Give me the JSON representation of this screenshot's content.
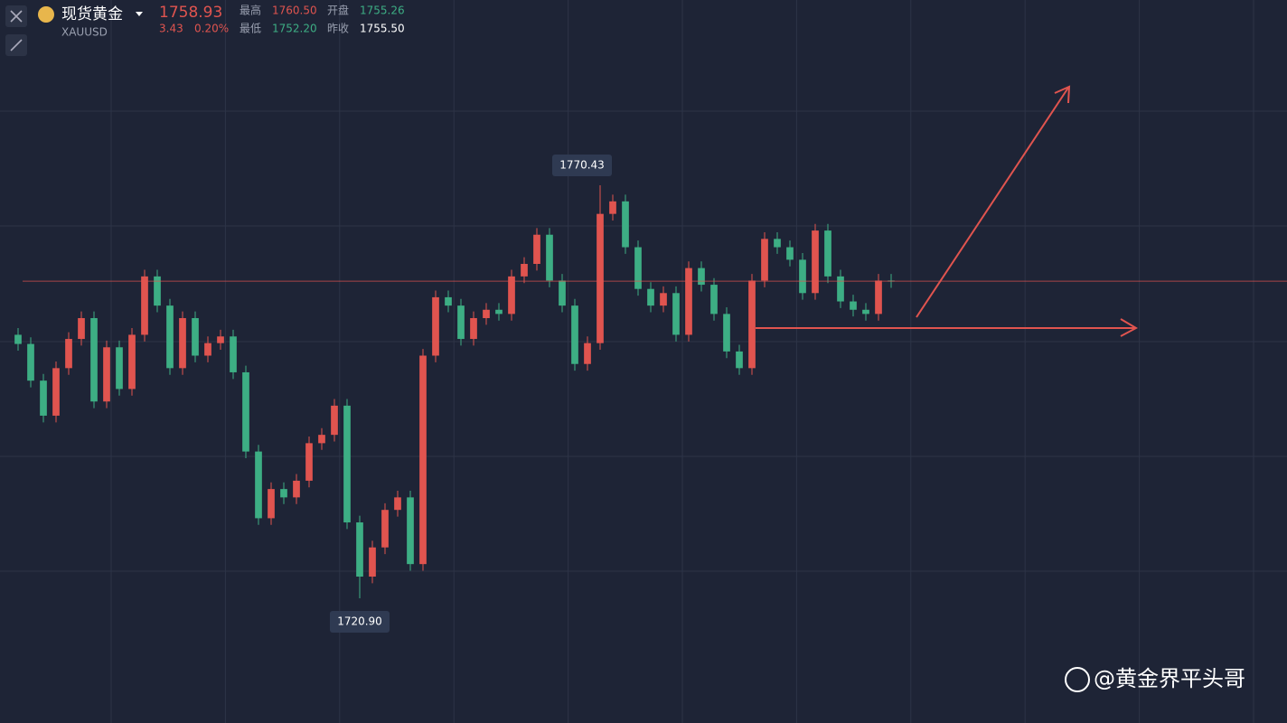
{
  "header": {
    "name": "现货黄金",
    "symbol": "XAUUSD",
    "price": "1758.93",
    "change": "3.43",
    "change_pct": "0.20%",
    "high_label": "最高",
    "high": "1760.50",
    "open_label": "开盘",
    "open": "1755.26",
    "low_label": "最低",
    "low": "1752.20",
    "prev_close_label": "昨收",
    "prev_close": "1755.50"
  },
  "watermark": "@黄金界平头哥",
  "chart_data": {
    "type": "candlestick",
    "up_color": "#e0544f",
    "down_color": "#3dae84",
    "max_label": "1770.43",
    "min_label": "1720.90",
    "open": [
      1752.5,
      1751.4,
      1747.0,
      1742.8,
      1748.5,
      1752.0,
      1754.5,
      1744.5,
      1751.0,
      1746.0,
      1752.5,
      1759.5,
      1756.0,
      1748.5,
      1754.5,
      1750.0,
      1751.5,
      1752.3,
      1748.0,
      1738.5,
      1730.5,
      1734.0,
      1733.0,
      1735.0,
      1739.5,
      1740.5,
      1744.0,
      1730.0,
      1723.5,
      1727.0,
      1731.5,
      1733.0,
      1725.0,
      1750.0,
      1757.0,
      1756.0,
      1752.0,
      1754.5,
      1755.5,
      1755.0,
      1759.5,
      1761.0,
      1764.5,
      1759.0,
      1756.0,
      1749.0,
      1751.5,
      1767.0,
      1768.5,
      1763.0,
      1758.0,
      1756.0,
      1757.5,
      1752.5,
      1760.5,
      1758.5,
      1755.0,
      1750.5,
      1748.5,
      1759.0,
      1764.0,
      1763.0,
      1761.5,
      1757.5,
      1765.0,
      1759.5,
      1756.5,
      1755.5,
      1755.0,
      1759.0
    ],
    "high": [
      1753.3,
      1752.2,
      1747.8,
      1749.3,
      1752.8,
      1755.3,
      1755.3,
      1751.8,
      1751.8,
      1753.3,
      1760.3,
      1760.3,
      1756.8,
      1755.3,
      1755.3,
      1752.3,
      1753.1,
      1753.1,
      1748.8,
      1739.3,
      1734.8,
      1734.8,
      1735.8,
      1740.3,
      1741.3,
      1744.8,
      1744.8,
      1730.8,
      1727.8,
      1732.3,
      1733.8,
      1733.8,
      1750.8,
      1757.8,
      1757.8,
      1756.8,
      1755.3,
      1756.3,
      1756.3,
      1760.3,
      1761.8,
      1765.3,
      1765.3,
      1759.8,
      1756.8,
      1752.3,
      1770.43,
      1769.3,
      1769.3,
      1763.8,
      1758.8,
      1758.3,
      1758.3,
      1761.3,
      1761.3,
      1759.3,
      1755.8,
      1751.3,
      1759.8,
      1764.8,
      1764.8,
      1763.8,
      1762.3,
      1765.8,
      1765.8,
      1760.3,
      1757.3,
      1756.3,
      1759.8,
      1759.8
    ],
    "low": [
      1750.6,
      1746.2,
      1742.0,
      1742.0,
      1747.7,
      1751.2,
      1743.7,
      1743.7,
      1745.2,
      1745.2,
      1751.7,
      1755.2,
      1747.7,
      1747.7,
      1749.2,
      1749.2,
      1750.7,
      1747.2,
      1737.7,
      1729.7,
      1729.7,
      1732.2,
      1732.2,
      1734.2,
      1738.7,
      1739.7,
      1729.2,
      1720.9,
      1722.7,
      1726.2,
      1730.7,
      1724.2,
      1724.2,
      1749.2,
      1755.2,
      1751.2,
      1751.2,
      1753.7,
      1754.2,
      1754.2,
      1758.7,
      1760.2,
      1758.2,
      1755.2,
      1748.2,
      1748.2,
      1750.7,
      1766.2,
      1762.2,
      1757.2,
      1755.2,
      1755.2,
      1751.7,
      1751.7,
      1757.7,
      1754.2,
      1749.7,
      1747.7,
      1747.7,
      1758.2,
      1762.2,
      1760.7,
      1756.7,
      1756.7,
      1758.7,
      1755.7,
      1754.7,
      1754.2,
      1754.2,
      1758.13
    ],
    "close": [
      1751.4,
      1747.0,
      1742.8,
      1748.5,
      1752.0,
      1754.5,
      1744.5,
      1751.0,
      1746.0,
      1752.5,
      1759.5,
      1756.0,
      1748.5,
      1754.5,
      1750.0,
      1751.5,
      1752.3,
      1748.0,
      1738.5,
      1730.5,
      1734.0,
      1733.0,
      1735.0,
      1739.5,
      1740.5,
      1744.0,
      1730.0,
      1723.5,
      1727.0,
      1731.5,
      1733.0,
      1725.0,
      1750.0,
      1757.0,
      1756.0,
      1752.0,
      1754.5,
      1755.5,
      1755.0,
      1759.5,
      1761.0,
      1764.5,
      1759.0,
      1756.0,
      1749.0,
      1751.5,
      1767.0,
      1768.5,
      1763.0,
      1758.0,
      1756.0,
      1757.5,
      1752.5,
      1760.5,
      1758.5,
      1755.0,
      1750.5,
      1748.5,
      1759.0,
      1764.0,
      1763.0,
      1761.5,
      1757.5,
      1765.0,
      1759.5,
      1756.5,
      1755.5,
      1755.0,
      1759.0,
      1758.93
    ]
  }
}
